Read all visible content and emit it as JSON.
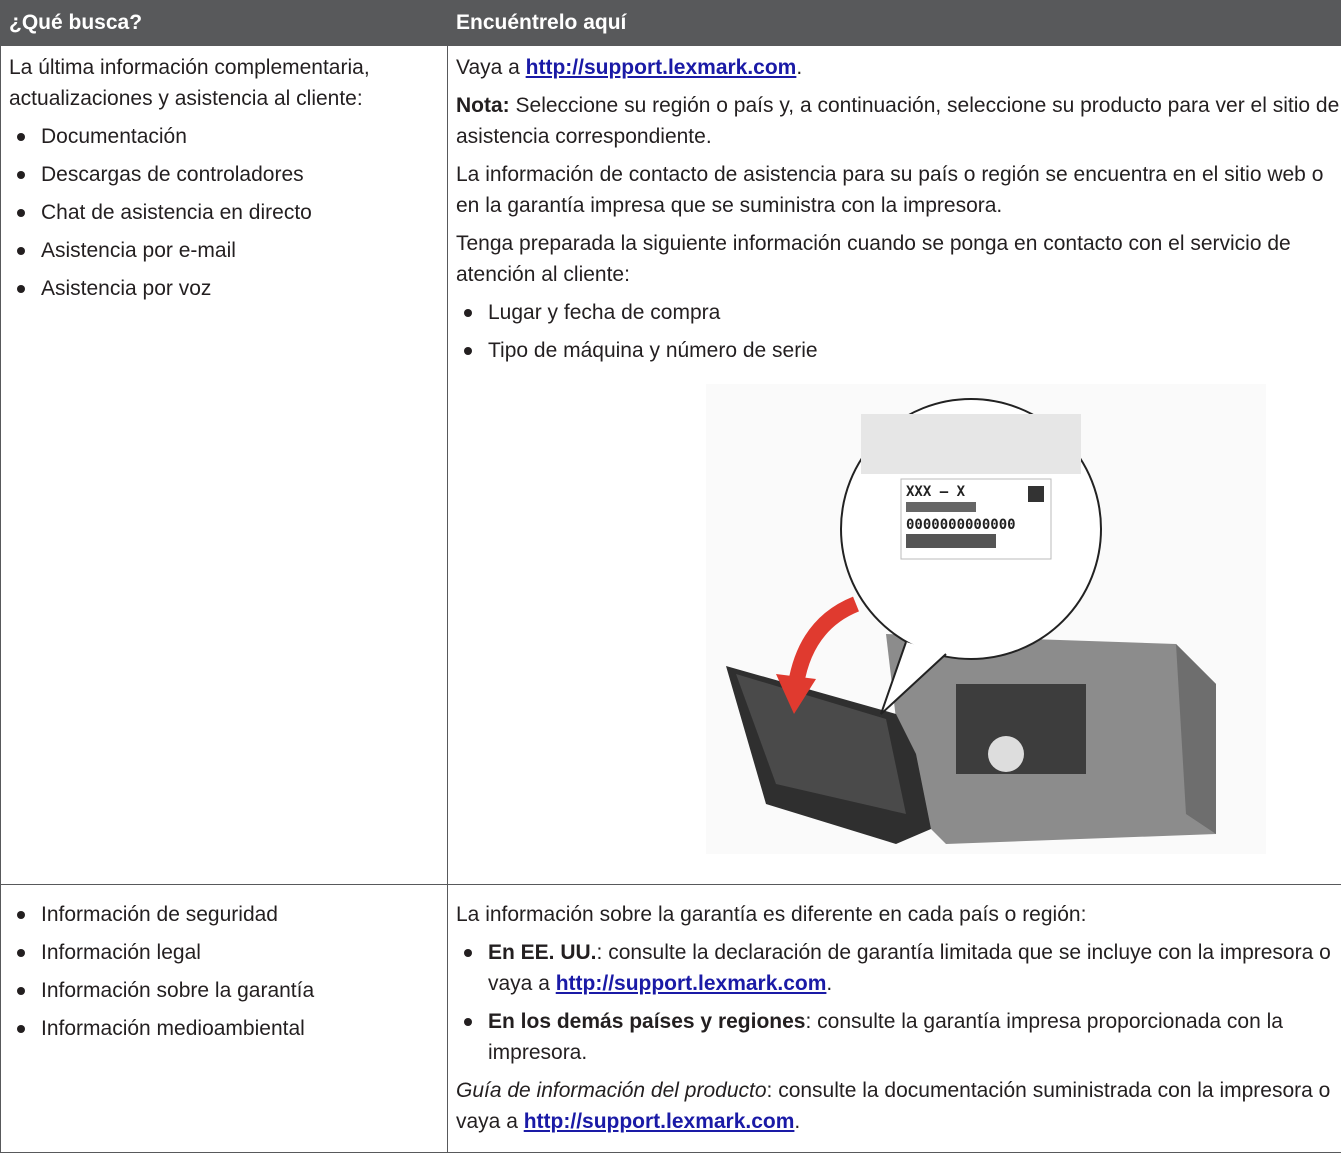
{
  "header": {
    "col1": "¿Qué busca?",
    "col2": "Encuéntrelo aquí"
  },
  "row1": {
    "left": {
      "intro": "La última información complementaria, actualizaciones y asistencia al cliente:",
      "items": [
        "Documentación",
        "Descargas de controladores",
        "Chat de asistencia en directo",
        "Asistencia por e-mail",
        "Asistencia por voz"
      ]
    },
    "right": {
      "visit": {
        "text": "Vaya a ",
        "link": "http://support.lexmark.com",
        "end": "."
      },
      "note": {
        "label": "Nota:",
        "text": " Seleccione su región o país y, a continuación, seleccione su producto para ver el sitio de asistencia correspondiente."
      },
      "contact": "La información de contacto de asistencia para su país o región se encuentra en el sitio web o en la garantía impresa que se suministra con la impresora.",
      "prepare": "Tenga preparada la siguiente información cuando se ponga en contacto con el servicio de atención al cliente:",
      "items": [
        "Lugar y fecha de compra",
        "Tipo de máquina y número de serie"
      ],
      "figure": {
        "label_top": "XXX – X",
        "serial": "0000000000000"
      }
    }
  },
  "row2": {
    "left": {
      "items": [
        "Información de seguridad",
        "Información legal",
        "Información sobre la garantía",
        "Información medioambiental"
      ]
    },
    "right": {
      "intro": "La información sobre la garantía es diferente en cada país o región:",
      "items": [
        {
          "label": "En EE. UU.",
          "text": ": consulte la declaración de garantía limitada que se incluye con la impresora o vaya a ",
          "link": "http://support.lexmark.com",
          "end": "."
        },
        {
          "label": "En los demás países y regiones",
          "text": ": consulte la garantía impresa proporcionada con la impresora."
        }
      ],
      "guide": {
        "title": "Guía de información del producto",
        "text": ": consulte la documentación suministrada con la impresora o vaya a ",
        "link": "http://support.lexmark.com",
        "end": "."
      }
    }
  }
}
